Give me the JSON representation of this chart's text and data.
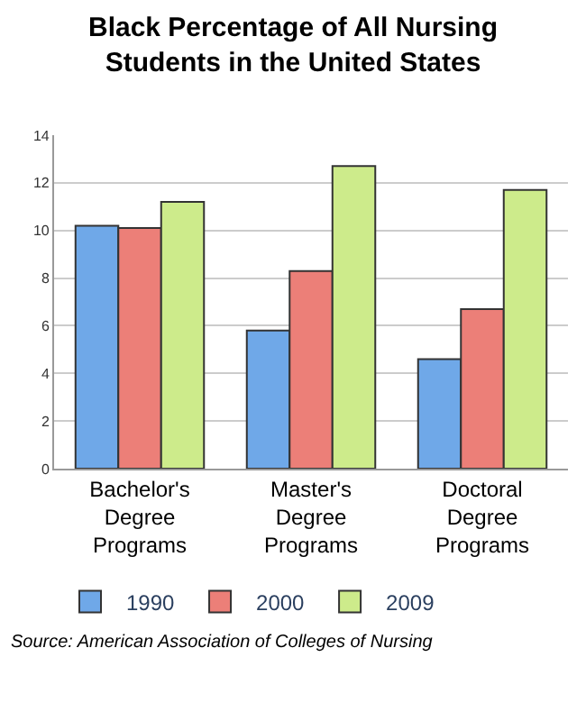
{
  "chart_data": {
    "type": "bar",
    "title": "Black Percentage of All Nursing Students in the United States",
    "categories": [
      "Bachelor's Degree Programs",
      "Master's Degree Programs",
      "Doctoral Degree Programs"
    ],
    "series": [
      {
        "name": "1990",
        "color": "#6fa8e8",
        "values": [
          10.2,
          5.8,
          4.6
        ]
      },
      {
        "name": "2000",
        "color": "#ec7f78",
        "values": [
          10.1,
          8.3,
          6.7
        ]
      },
      {
        "name": "2009",
        "color": "#cdeb8b",
        "values": [
          11.2,
          12.7,
          11.7
        ]
      }
    ],
    "ylim": [
      0,
      14
    ],
    "yticks": [
      0,
      2,
      4,
      6,
      8,
      10,
      12,
      14
    ],
    "grid": "y",
    "legend": "bottom",
    "annotations": [
      "Source: American Association of Colleges of Nursing"
    ]
  }
}
